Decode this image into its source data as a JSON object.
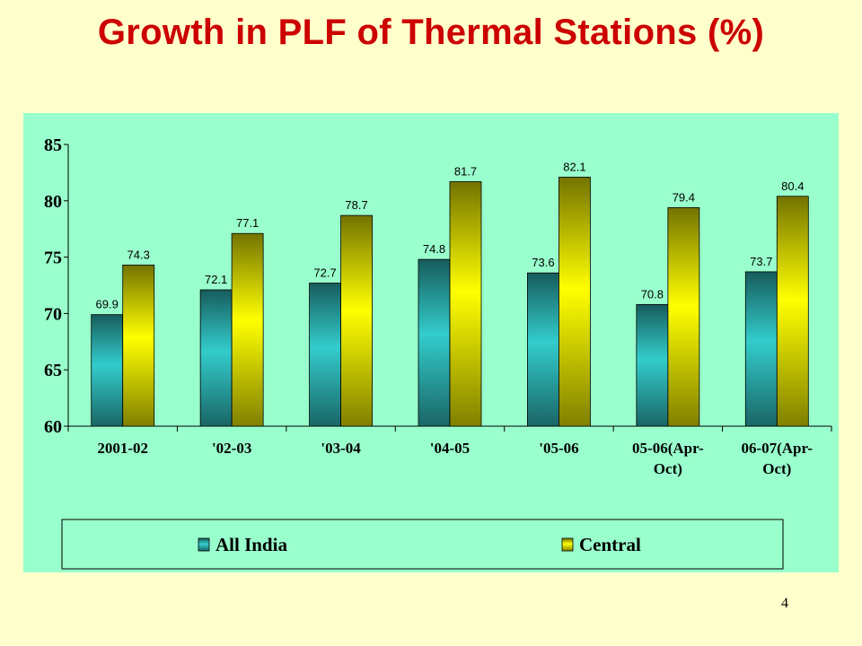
{
  "slide": {
    "title": "Growth in PLF of Thermal Stations (%)",
    "page_number": "4"
  },
  "colors": {
    "slide_background": "#FFFFCC",
    "plot_background": "#99FFCC",
    "title": "#CC0000",
    "all_india": "#33CCCC",
    "central": "#FFFF00"
  },
  "chart_data": {
    "type": "bar",
    "title": "",
    "xlabel": "",
    "ylabel": "",
    "ylim": [
      60,
      85
    ],
    "yticks": [
      60,
      65,
      70,
      75,
      80,
      85
    ],
    "categories": [
      [
        "2001-02"
      ],
      [
        "'02-03"
      ],
      [
        "'03-04"
      ],
      [
        "'04-05"
      ],
      [
        "'05-06"
      ],
      [
        "05-06(Apr-",
        "Oct)"
      ],
      [
        "06-07(Apr-",
        "Oct)"
      ]
    ],
    "series": [
      {
        "name": "All India",
        "color": "#33CCCC",
        "values": [
          69.9,
          72.1,
          72.7,
          74.8,
          73.6,
          70.8,
          73.7
        ]
      },
      {
        "name": "Central",
        "color": "#FFFF00",
        "values": [
          74.3,
          77.1,
          78.7,
          81.7,
          82.1,
          79.4,
          80.4
        ]
      }
    ],
    "data_labels": true,
    "grid": false,
    "legend": "bottom"
  }
}
